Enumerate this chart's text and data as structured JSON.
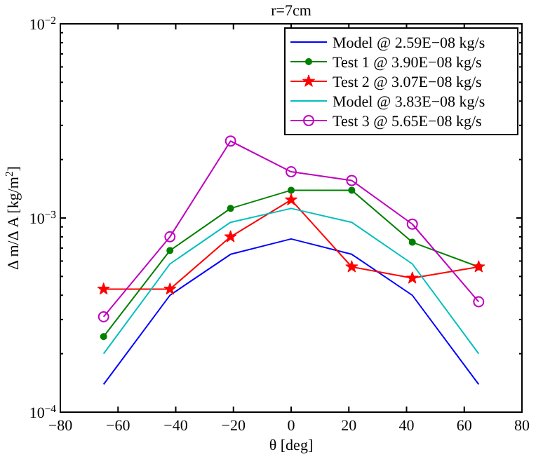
{
  "chart_data": {
    "type": "line",
    "title": "r=7cm",
    "xlabel": "θ [deg]",
    "ylabel": "Δ m/Δ A [kg/m$^{2}$]",
    "x": [
      -65,
      -42,
      -21,
      0,
      21,
      42,
      65
    ],
    "series": [
      {
        "name": "Model @ 2.59E−08 kg/s",
        "color": "#0000ff",
        "marker": "none",
        "values": [
          0.000139,
          0.0004,
          0.00065,
          0.00078,
          0.00065,
          0.0004,
          0.000139
        ]
      },
      {
        "name": "Test 1 @ 3.90E−08 kg/s",
        "color": "#008000",
        "marker": "circle",
        "values": [
          0.000245,
          0.00068,
          0.00112,
          0.00139,
          0.00139,
          0.00075,
          0.00056
        ]
      },
      {
        "name": "Test 2 @ 3.07E−08 kg/s",
        "color": "#ff0000",
        "marker": "star",
        "values": [
          0.00043,
          0.00043,
          0.0008,
          0.00124,
          0.00056,
          0.00049,
          0.00056
        ]
      },
      {
        "name": "Model @ 3.83E−08 kg/s",
        "color": "#00bfbf",
        "marker": "none",
        "values": [
          0.0002,
          0.00058,
          0.00095,
          0.00112,
          0.00095,
          0.00058,
          0.0002
        ]
      },
      {
        "name": "Test 3 @ 5.65E−08 kg/s",
        "color": "#bf00bf",
        "marker": "circle",
        "values": [
          0.00031,
          0.0008,
          0.00249,
          0.00173,
          0.00156,
          0.00093,
          0.00037
        ]
      }
    ],
    "log": "y",
    "xlim": [
      -80,
      80
    ],
    "xticks": [
      -80,
      -60,
      -40,
      -20,
      0,
      20,
      40,
      60,
      80
    ],
    "ylim": [
      0.0001,
      0.01
    ],
    "yticks": [
      {
        "value": 0.0001,
        "label": "10$^{−4}$"
      },
      {
        "value": 0.001,
        "label": "10$^{−3}$"
      },
      {
        "value": 0.01,
        "label": "10$^{−2}$"
      }
    ],
    "legend": "top right",
    "grid": false,
    "line_style": "solid"
  }
}
